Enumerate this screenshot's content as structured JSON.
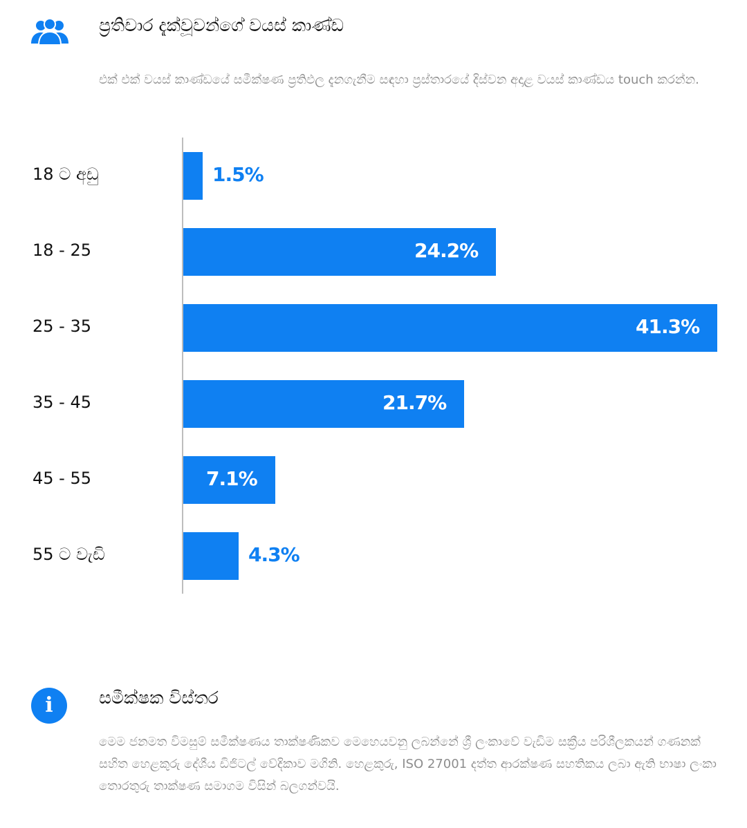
{
  "age_section": {
    "icon": "people-group-icon",
    "title": "ප්‍රතිචාර දැක්වූවන්ගේ වයස් කාණ්ඩ",
    "description": "එක් එක් වයස් කාණ්ඩයේ සමීක්ෂණ ප්‍රතිඵල දැනගැනීම සඳහා ප්‍රස්තාරයේ දිස්වන අදාළ වයස් කාණ්ඩය touch කරන්න."
  },
  "chart_data": {
    "type": "bar",
    "orientation": "horizontal",
    "categories": [
      "18 ට අඩු",
      "18 - 25",
      "25 - 35",
      "35 - 45",
      "45 - 55",
      "55 ට වැඩි"
    ],
    "values": [
      1.5,
      24.2,
      41.3,
      21.7,
      7.1,
      4.3
    ],
    "value_labels": [
      "1.5%",
      "24.2%",
      "41.3%",
      "21.7%",
      "7.1%",
      "4.3%"
    ],
    "unit": "%",
    "bar_color": "#0f80f2"
  },
  "info_section": {
    "icon": "info-icon",
    "icon_glyph": "i",
    "title": "සමීක්ෂක විස්තර",
    "description": "මෙම ජනමත විමසුම් සමීක්ෂණය තාක්ෂණිකව මෙහෙයවනු ලබන්නේ ශ්‍රී ලංකාවේ වැඩිම සක්‍රීය පරිශීලකයන් ගණනක් සහිත හෙළකුරු දේශීය ඩිජිටල් වේදිකාව මගිනි. හෙළකුරු, ISO 27001 දත්ත ආරක්ෂණ සහතිකය ලබා ඇති භාෂා ලංකා තොරතුරු තාක්ෂණ සමාගම විසින් බලගන්වයි."
  },
  "colors": {
    "accent": "#0f80f2",
    "muted_text": "#8d8d8d",
    "axis": "#bdbdbd"
  }
}
